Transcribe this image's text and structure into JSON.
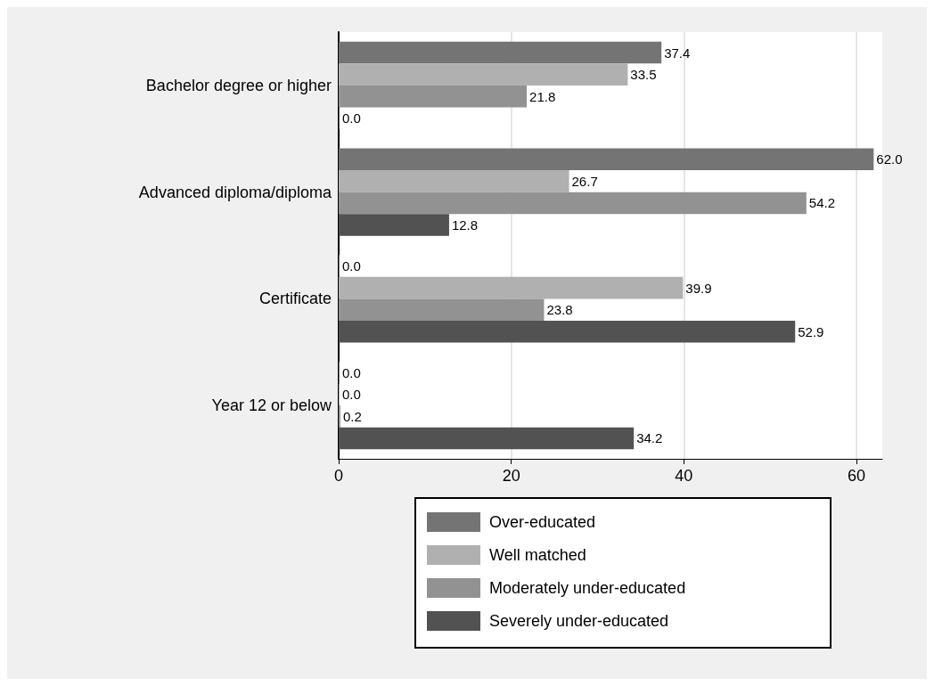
{
  "chart_data": {
    "type": "bar",
    "orientation": "horizontal",
    "categories": [
      "Bachelor degree or higher",
      "Advanced diploma/diploma",
      "Certificate",
      "Year 12 or below"
    ],
    "series": [
      {
        "name": "Over-educated",
        "color": "#747474",
        "values": [
          37.4,
          62.0,
          0.0,
          0.0
        ],
        "value_labels": [
          "37.4",
          "62.0",
          "0.0",
          "0.0"
        ]
      },
      {
        "name": "Well matched",
        "color": "#b0b0b0",
        "values": [
          33.5,
          26.7,
          39.9,
          0.0
        ],
        "value_labels": [
          "33.5",
          "26.7",
          "39.9",
          "0.0"
        ]
      },
      {
        "name": "Moderately under-educated",
        "color": "#929292",
        "values": [
          21.8,
          54.2,
          23.8,
          0.2
        ],
        "value_labels": [
          "21.8",
          "54.2",
          "23.8",
          "0.2"
        ]
      },
      {
        "name": "Severely under-educated",
        "color": "#525252",
        "values": [
          0.0,
          12.8,
          52.9,
          34.2
        ],
        "value_labels": [
          "0.0",
          "12.8",
          "52.9",
          "34.2"
        ]
      }
    ],
    "xlim": [
      0,
      63
    ],
    "xticks": [
      0,
      20,
      40,
      60
    ],
    "grid": "x",
    "legend": "bottom"
  }
}
